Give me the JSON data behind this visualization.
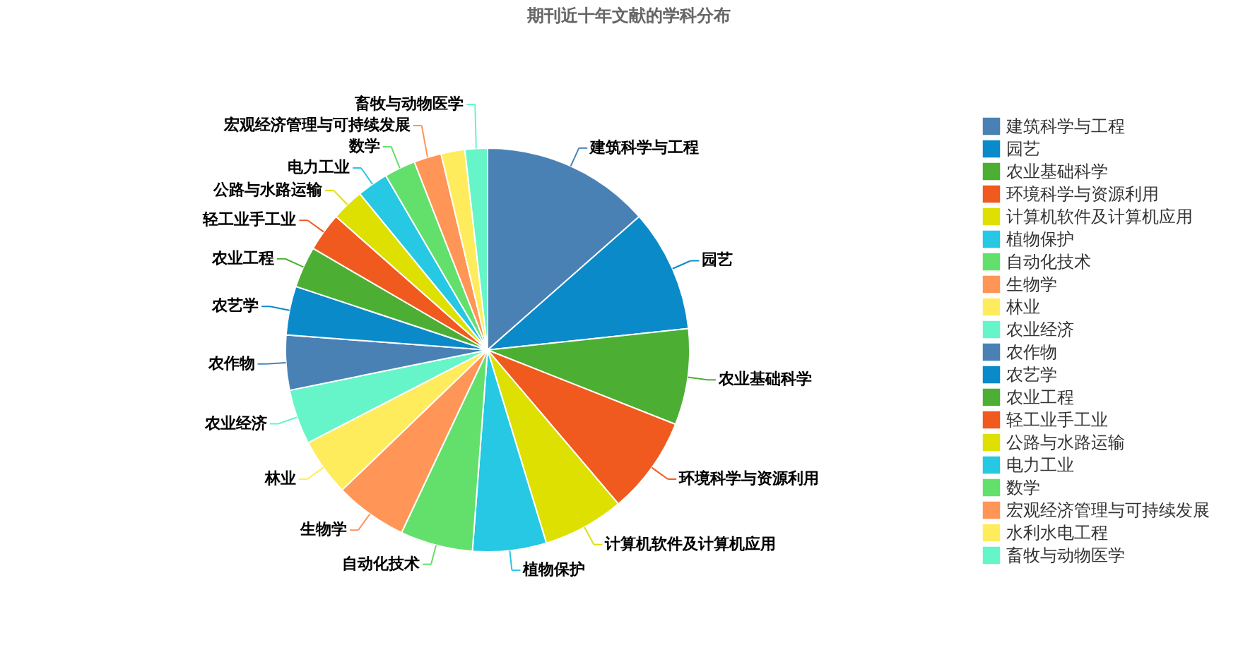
{
  "chart_data": {
    "type": "pie",
    "title": "期刊近十年文献的学科分布",
    "categories": [
      "建筑科学与工程",
      "园艺",
      "农业基础科学",
      "环境科学与资源利用",
      "计算机软件及计算机应用",
      "植物保护",
      "自动化技术",
      "生物学",
      "林业",
      "农业经济",
      "农作物",
      "农艺学",
      "农业工程",
      "轻工业手工业",
      "公路与水路运输",
      "电力工业",
      "数学",
      "宏观经济管理与可持续发展",
      "水利水电工程",
      "畜牧与动物医学"
    ],
    "values": [
      13.5,
      9.8,
      7.7,
      7.8,
      6.5,
      5.9,
      5.8,
      5.8,
      4.6,
      4.4,
      4.4,
      3.9,
      3.3,
      3.1,
      2.6,
      2.5,
      2.5,
      2.2,
      1.9,
      1.8
    ],
    "colors": [
      "#4a81b5",
      "#0a8ac9",
      "#4caf33",
      "#f05a1e",
      "#dde000",
      "#26c8e3",
      "#63e06b",
      "#ff9557",
      "#ffec5c",
      "#66f5c8",
      "#4a81b5",
      "#0a8ac9",
      "#4caf33",
      "#f05a1e",
      "#dde000",
      "#26c8e3",
      "#63e06b",
      "#ff9557",
      "#ffec5c",
      "#66f5c8"
    ],
    "value_labels": [
      "建筑科学与工程",
      "园艺",
      "农业基础科学",
      "环境科学与资源利用",
      "计算机软件及计算机应用",
      "植物保护",
      "自动化技术",
      "生物学",
      "林业",
      "农业经济",
      "农作物",
      "农艺学",
      "农业工程",
      "轻工业手工业",
      "公路与水路运输",
      "电力工业",
      "数学",
      "宏观经济管理与可持续发展",
      null,
      "畜牧与动物医学"
    ],
    "legend": "right"
  }
}
